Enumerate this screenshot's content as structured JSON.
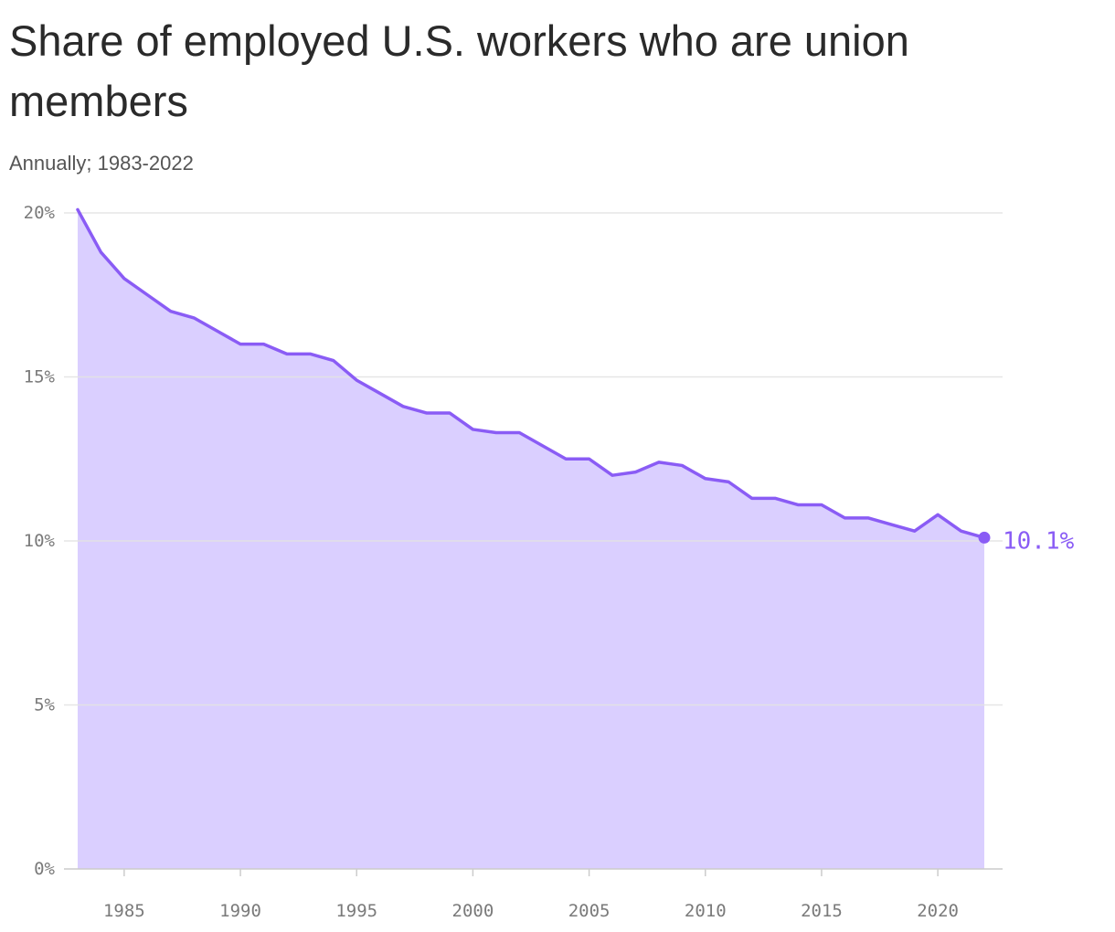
{
  "chart_data": {
    "type": "area",
    "title": "Share of employed U.S. workers who are union members",
    "subtitle": "Annually; 1983-2022",
    "xlabel": "",
    "ylabel": "",
    "x": [
      1983,
      1984,
      1985,
      1986,
      1987,
      1988,
      1989,
      1990,
      1991,
      1992,
      1993,
      1994,
      1995,
      1996,
      1997,
      1998,
      1999,
      2000,
      2001,
      2002,
      2003,
      2004,
      2005,
      2006,
      2007,
      2008,
      2009,
      2010,
      2011,
      2012,
      2013,
      2014,
      2015,
      2016,
      2017,
      2018,
      2019,
      2020,
      2021,
      2022
    ],
    "values": [
      20.1,
      18.8,
      18.0,
      17.5,
      17.0,
      16.8,
      16.4,
      16.0,
      16.0,
      15.7,
      15.7,
      15.5,
      14.9,
      14.5,
      14.1,
      13.9,
      13.9,
      13.4,
      13.3,
      13.3,
      12.9,
      12.5,
      12.5,
      12.0,
      12.1,
      12.4,
      12.3,
      11.9,
      11.8,
      11.3,
      11.3,
      11.1,
      11.1,
      10.7,
      10.7,
      10.5,
      10.3,
      10.8,
      10.3,
      10.1
    ],
    "xlim": [
      1983,
      2022
    ],
    "ylim": [
      0,
      20
    ],
    "x_ticks": [
      1985,
      1990,
      1995,
      2000,
      2005,
      2010,
      2015,
      2020
    ],
    "x_tick_labels": [
      "1985",
      "1990",
      "1995",
      "2000",
      "2005",
      "2010",
      "2015",
      "2020"
    ],
    "y_ticks": [
      0,
      5,
      10,
      15,
      20
    ],
    "y_tick_labels": [
      "0%",
      "5%",
      "10%",
      "15%",
      "20%"
    ],
    "end_label": "10.1%",
    "grid": true,
    "colors": {
      "line": "#8a5cf5",
      "fill": "#dacfff",
      "grid": "#e3e3e3",
      "axis": "#cccccc"
    }
  }
}
